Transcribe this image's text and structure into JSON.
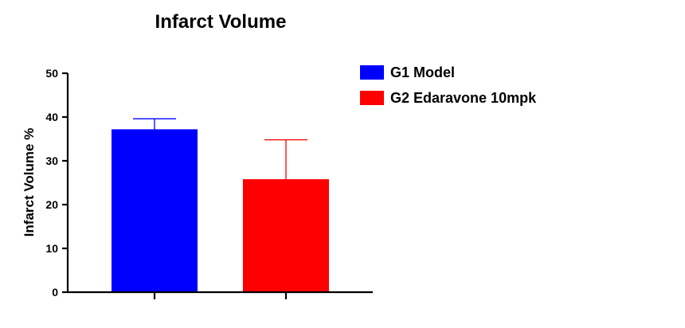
{
  "chart_data": {
    "type": "bar",
    "title": "Infarct Volume",
    "xlabel": "",
    "ylabel": "Infarct Volume %",
    "ylim": [
      0,
      50
    ],
    "yticks": [
      0,
      10,
      20,
      30,
      40,
      50
    ],
    "grid": false,
    "legend_position": "top-right",
    "series": [
      {
        "name": "G1 Model",
        "value": 37.2,
        "error": 2.4,
        "color": "#0000ff"
      },
      {
        "name": "G2 Edaravone 10mpk",
        "value": 25.8,
        "error": 9.0,
        "color": "#ff0000"
      }
    ]
  }
}
